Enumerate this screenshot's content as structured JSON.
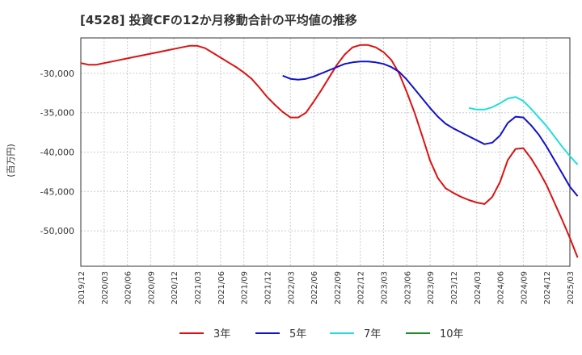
{
  "chart_data": {
    "type": "line",
    "title": "[4528]  投資CFの12か月移動合計の平均値の推移",
    "ylabel": "(百万円)",
    "xlabel": "",
    "y_ticks": [
      -30000,
      -35000,
      -40000,
      -45000,
      -50000
    ],
    "y_tick_labels": [
      "-30,000",
      "-35,000",
      "-40,000",
      "-45,000",
      "-50,000"
    ],
    "ylim": [
      -54500,
      -25500
    ],
    "x_ticks": [
      "2019/12",
      "2020/03",
      "2020/06",
      "2020/09",
      "2020/12",
      "2021/03",
      "2021/06",
      "2021/09",
      "2021/12",
      "2022/03",
      "2022/06",
      "2022/09",
      "2022/12",
      "2023/03",
      "2023/06",
      "2023/09",
      "2023/12",
      "2024/03",
      "2024/06",
      "2024/09",
      "2024/12",
      "2025/03"
    ],
    "grid": true,
    "legend_position": "bottom",
    "series": [
      {
        "name": "3年",
        "color": "#dd1111",
        "points": [
          [
            "2019/12",
            -28700
          ],
          [
            "2020/01",
            -28900
          ],
          [
            "2020/02",
            -28900
          ],
          [
            "2020/03",
            -28700
          ],
          [
            "2020/04",
            -28500
          ],
          [
            "2020/05",
            -28300
          ],
          [
            "2020/06",
            -28100
          ],
          [
            "2020/07",
            -27900
          ],
          [
            "2020/08",
            -27700
          ],
          [
            "2020/09",
            -27500
          ],
          [
            "2020/10",
            -27300
          ],
          [
            "2020/11",
            -27100
          ],
          [
            "2020/12",
            -26900
          ],
          [
            "2021/01",
            -26700
          ],
          [
            "2021/02",
            -26500
          ],
          [
            "2021/03",
            -26500
          ],
          [
            "2021/04",
            -26800
          ],
          [
            "2021/05",
            -27400
          ],
          [
            "2021/06",
            -28000
          ],
          [
            "2021/07",
            -28600
          ],
          [
            "2021/08",
            -29200
          ],
          [
            "2021/09",
            -29900
          ],
          [
            "2021/10",
            -30700
          ],
          [
            "2021/11",
            -31800
          ],
          [
            "2021/12",
            -33000
          ],
          [
            "2022/01",
            -34000
          ],
          [
            "2022/02",
            -34900
          ],
          [
            "2022/03",
            -35600
          ],
          [
            "2022/04",
            -35600
          ],
          [
            "2022/05",
            -35000
          ],
          [
            "2022/06",
            -33600
          ],
          [
            "2022/07",
            -32100
          ],
          [
            "2022/08",
            -30500
          ],
          [
            "2022/09",
            -28900
          ],
          [
            "2022/10",
            -27600
          ],
          [
            "2022/11",
            -26700
          ],
          [
            "2022/12",
            -26400
          ],
          [
            "2023/01",
            -26400
          ],
          [
            "2023/02",
            -26700
          ],
          [
            "2023/03",
            -27300
          ],
          [
            "2023/04",
            -28300
          ],
          [
            "2023/05",
            -30000
          ],
          [
            "2023/06",
            -32400
          ],
          [
            "2023/07",
            -35000
          ],
          [
            "2023/08",
            -38000
          ],
          [
            "2023/09",
            -41100
          ],
          [
            "2023/10",
            -43300
          ],
          [
            "2023/11",
            -44600
          ],
          [
            "2023/12",
            -45200
          ],
          [
            "2024/01",
            -45700
          ],
          [
            "2024/02",
            -46100
          ],
          [
            "2024/03",
            -46400
          ],
          [
            "2024/04",
            -46600
          ],
          [
            "2024/05",
            -45700
          ],
          [
            "2024/06",
            -43800
          ],
          [
            "2024/07",
            -41000
          ],
          [
            "2024/08",
            -39600
          ],
          [
            "2024/09",
            -39500
          ],
          [
            "2024/10",
            -40800
          ],
          [
            "2024/11",
            -42400
          ],
          [
            "2024/12",
            -44200
          ],
          [
            "2025/01",
            -46400
          ],
          [
            "2025/02",
            -48600
          ],
          [
            "2025/03",
            -50900
          ],
          [
            "2025/04",
            -53400
          ]
        ]
      },
      {
        "name": "5年",
        "color": "#1111cc",
        "points": [
          [
            "2022/02",
            -30300
          ],
          [
            "2022/03",
            -30700
          ],
          [
            "2022/04",
            -30800
          ],
          [
            "2022/05",
            -30700
          ],
          [
            "2022/06",
            -30400
          ],
          [
            "2022/07",
            -30000
          ],
          [
            "2022/08",
            -29600
          ],
          [
            "2022/09",
            -29200
          ],
          [
            "2022/10",
            -28800
          ],
          [
            "2022/11",
            -28600
          ],
          [
            "2022/12",
            -28500
          ],
          [
            "2023/01",
            -28500
          ],
          [
            "2023/02",
            -28600
          ],
          [
            "2023/03",
            -28800
          ],
          [
            "2023/04",
            -29200
          ],
          [
            "2023/05",
            -29800
          ],
          [
            "2023/06",
            -30800
          ],
          [
            "2023/07",
            -32000
          ],
          [
            "2023/08",
            -33200
          ],
          [
            "2023/09",
            -34400
          ],
          [
            "2023/10",
            -35500
          ],
          [
            "2023/11",
            -36400
          ],
          [
            "2023/12",
            -37000
          ],
          [
            "2024/01",
            -37500
          ],
          [
            "2024/02",
            -38000
          ],
          [
            "2024/03",
            -38500
          ],
          [
            "2024/04",
            -39000
          ],
          [
            "2024/05",
            -38800
          ],
          [
            "2024/06",
            -37900
          ],
          [
            "2024/07",
            -36300
          ],
          [
            "2024/08",
            -35500
          ],
          [
            "2024/09",
            -35600
          ],
          [
            "2024/10",
            -36600
          ],
          [
            "2024/11",
            -37800
          ],
          [
            "2024/12",
            -39300
          ],
          [
            "2025/01",
            -41000
          ],
          [
            "2025/02",
            -42700
          ],
          [
            "2025/03",
            -44400
          ],
          [
            "2025/04",
            -45600
          ]
        ]
      },
      {
        "name": "7年",
        "color": "#22dddd",
        "points": [
          [
            "2024/02",
            -34400
          ],
          [
            "2024/03",
            -34600
          ],
          [
            "2024/04",
            -34600
          ],
          [
            "2024/05",
            -34300
          ],
          [
            "2024/06",
            -33800
          ],
          [
            "2024/07",
            -33200
          ],
          [
            "2024/08",
            -33000
          ],
          [
            "2024/09",
            -33500
          ],
          [
            "2024/10",
            -34500
          ],
          [
            "2024/11",
            -35600
          ],
          [
            "2024/12",
            -36700
          ],
          [
            "2025/01",
            -38000
          ],
          [
            "2025/02",
            -39300
          ],
          [
            "2025/03",
            -40500
          ],
          [
            "2025/04",
            -41600
          ]
        ]
      },
      {
        "name": "10年",
        "color": "#228822",
        "points": []
      }
    ]
  }
}
